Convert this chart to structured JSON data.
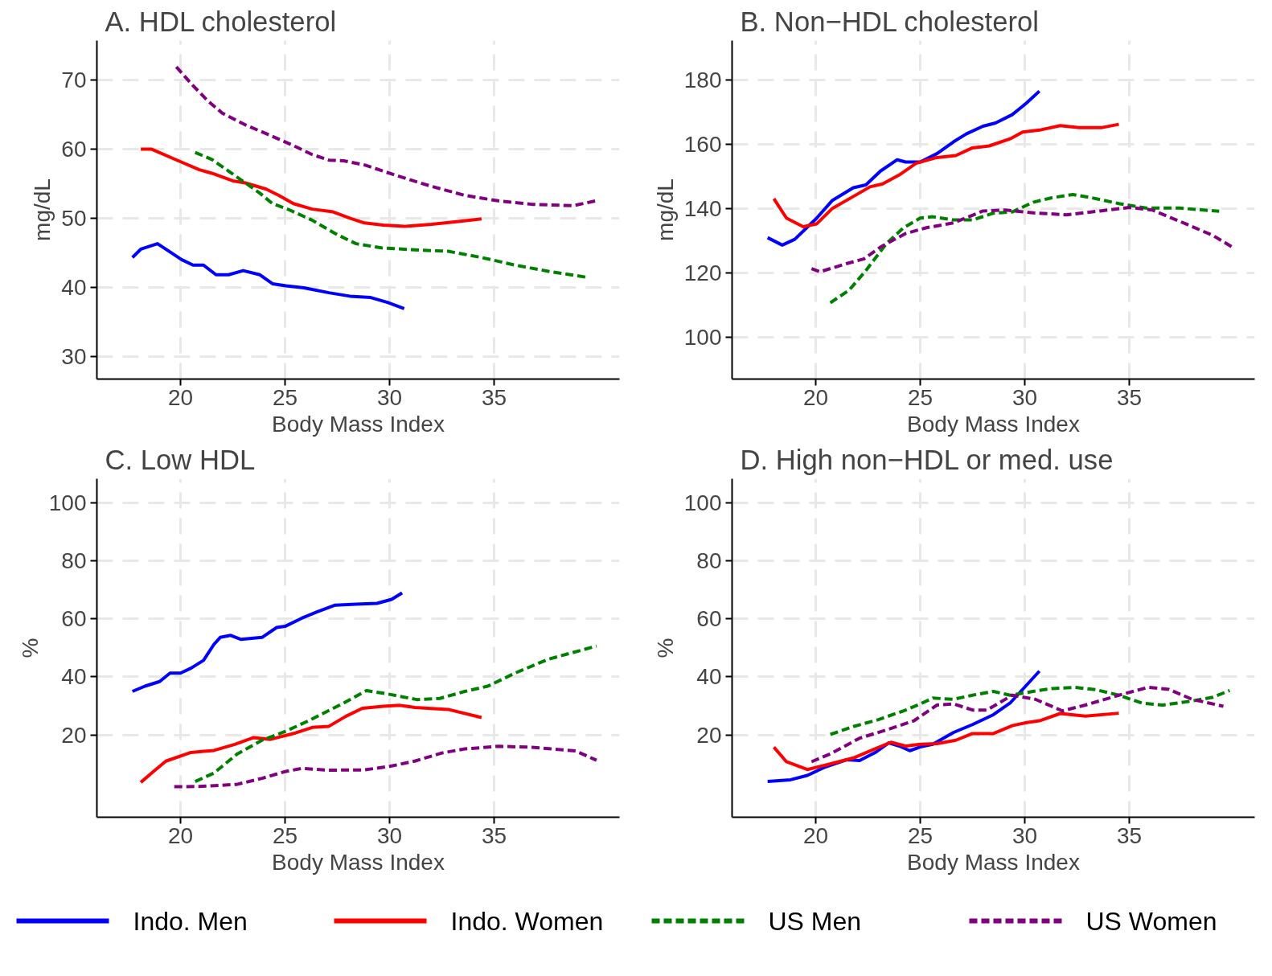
{
  "chart_data": [
    {
      "type": "line",
      "title": "A. HDL cholesterol",
      "xlabel": "Body Mass Index",
      "ylabel": "mg/dL",
      "xlim": [
        16,
        41
      ],
      "ylim": [
        26.7,
        75.7
      ],
      "xticks": [
        20,
        25,
        30,
        35
      ],
      "yticks": [
        30,
        40,
        50,
        60,
        70
      ],
      "grid": true,
      "legend": "bottom",
      "series": [
        {
          "name": "Indo. Men",
          "color": "#0000ff",
          "line_style": "solid",
          "x": [
            17.7,
            18.1,
            18.9,
            19.5,
            20.05,
            20.6,
            21.1,
            21.7,
            22.3,
            23.0,
            23.8,
            24.4,
            25.05,
            25.9,
            27.1,
            28.1,
            29.1,
            29.9,
            30.7
          ],
          "values": [
            44.3,
            45.5,
            46.3,
            45.1,
            44.0,
            43.2,
            43.2,
            41.8,
            41.8,
            42.4,
            41.8,
            40.5,
            40.2,
            39.9,
            39.2,
            38.7,
            38.5,
            37.8,
            36.9
          ]
        },
        {
          "name": "Indo. Women",
          "color": "#ff0000",
          "line_style": "solid",
          "x": [
            18.1,
            18.6,
            19.9,
            20.9,
            21.5,
            22.5,
            23.1,
            24.1,
            24.7,
            25.4,
            26.3,
            27.3,
            28.1,
            28.8,
            29.7,
            30.7,
            32.0,
            33.3,
            34.4
          ],
          "values": [
            60.0,
            60.0,
            58.3,
            57.0,
            56.5,
            55.4,
            55.1,
            54.2,
            53.3,
            52.1,
            51.3,
            50.9,
            50.0,
            49.3,
            49.0,
            48.8,
            49.1,
            49.5,
            49.9
          ]
        },
        {
          "name": "US Men",
          "color": "#008000",
          "line_style": "dashed",
          "x": [
            20.7,
            21.5,
            22.3,
            23.1,
            23.8,
            24.4,
            25.2,
            26.3,
            27.5,
            28.4,
            29.6,
            31.2,
            32.8,
            34.4,
            36.0,
            37.6,
            39.5
          ],
          "values": [
            59.5,
            58.5,
            56.8,
            55.1,
            53.6,
            52.1,
            51.2,
            49.7,
            47.6,
            46.3,
            45.7,
            45.4,
            45.2,
            44.3,
            43.2,
            42.3,
            41.4
          ]
        },
        {
          "name": "US Women",
          "color": "#800080",
          "line_style": "dashed",
          "x": [
            19.8,
            20.5,
            21.3,
            22.0,
            23.1,
            24.2,
            25.4,
            26.3,
            27.1,
            27.8,
            28.8,
            30.4,
            32.0,
            33.6,
            35.2,
            36.8,
            38.8,
            40.0
          ],
          "values": [
            71.9,
            69.5,
            67.0,
            65.2,
            63.5,
            62.1,
            60.5,
            59.2,
            58.4,
            58.3,
            57.7,
            56.1,
            54.6,
            53.3,
            52.5,
            52.0,
            51.8,
            52.6
          ]
        }
      ]
    },
    {
      "type": "line",
      "title": "B. Non−HDL cholesterol",
      "xlabel": "Body Mass Index",
      "ylabel": "mg/dL",
      "xlim": [
        16,
        41
      ],
      "ylim": [
        87.1,
        192.2
      ],
      "xticks": [
        20,
        25,
        30,
        35
      ],
      "yticks": [
        100,
        120,
        140,
        160,
        180
      ],
      "grid": true,
      "series": [
        {
          "color": "#0000ff",
          "line_style": "solid",
          "x": [
            17.7,
            18.4,
            19.0,
            20.05,
            20.8,
            21.8,
            22.4,
            23.1,
            23.9,
            24.3,
            25.0,
            25.8,
            26.6,
            27.2,
            28.0,
            28.6,
            29.4,
            30.1,
            30.7
          ],
          "values": [
            131.0,
            128.7,
            130.5,
            137.1,
            142.6,
            146.5,
            147.4,
            151.7,
            155.2,
            154.5,
            154.5,
            157.1,
            160.8,
            163.2,
            165.6,
            166.6,
            169.2,
            172.9,
            176.5
          ]
        },
        {
          "color": "#ff0000",
          "line_style": "solid",
          "x": [
            18.0,
            18.6,
            19.4,
            20.05,
            20.8,
            21.8,
            22.6,
            23.2,
            24.0,
            24.8,
            25.8,
            26.7,
            27.5,
            28.3,
            29.3,
            29.9,
            30.7,
            31.7,
            32.6,
            33.7,
            34.5
          ],
          "values": [
            143.1,
            137.1,
            134.4,
            135.3,
            140.1,
            143.8,
            146.8,
            147.7,
            150.5,
            154.1,
            155.9,
            156.5,
            158.9,
            159.5,
            161.7,
            163.8,
            164.4,
            165.8,
            165.2,
            165.2,
            166.2
          ]
        },
        {
          "color": "#008000",
          "line_style": "dashed",
          "x": [
            20.7,
            21.6,
            22.4,
            23.4,
            24.2,
            25.0,
            25.6,
            26.6,
            27.5,
            28.5,
            29.4,
            30.4,
            31.3,
            32.3,
            33.2,
            34.5,
            35.8,
            37.4,
            39.3
          ],
          "values": [
            110.8,
            114.7,
            120.8,
            129.3,
            134.1,
            137.1,
            137.5,
            136.5,
            136.5,
            138.6,
            139.0,
            142.0,
            143.4,
            144.4,
            143.4,
            141.6,
            140.2,
            140.2,
            139.2
          ]
        },
        {
          "color": "#800080",
          "line_style": "dashed",
          "x": [
            19.8,
            20.2,
            21.5,
            22.3,
            23.1,
            24.3,
            25.3,
            26.6,
            28.0,
            29.1,
            30.4,
            32.0,
            33.6,
            35.0,
            36.1,
            37.7,
            39.0,
            40.0
          ],
          "values": [
            121.4,
            120.4,
            123.0,
            124.4,
            128.1,
            132.3,
            134.1,
            135.6,
            139.3,
            139.6,
            138.7,
            138.1,
            139.3,
            140.4,
            139.6,
            135.3,
            131.7,
            127.8
          ]
        }
      ]
    },
    {
      "type": "line",
      "title": "C. Low HDL",
      "xlabel": "Body Mass Index",
      "ylabel": "%",
      "xlim": [
        16,
        41
      ],
      "ylim": [
        -8.3,
        108.2
      ],
      "xticks": [
        20,
        25,
        30,
        35
      ],
      "yticks": [
        20,
        40,
        60,
        80,
        100
      ],
      "grid": true,
      "series": [
        {
          "color": "#0000ff",
          "line_style": "solid",
          "x": [
            17.7,
            18.3,
            19.0,
            19.5,
            20.0,
            20.5,
            21.1,
            21.6,
            21.9,
            22.4,
            22.9,
            23.9,
            24.6,
            25.0,
            25.8,
            26.5,
            27.4,
            28.4,
            29.4,
            30.1,
            30.6
          ],
          "values": [
            35.0,
            36.8,
            38.4,
            41.3,
            41.3,
            43.0,
            45.7,
            51.2,
            53.6,
            54.3,
            52.9,
            53.6,
            57.0,
            57.4,
            60.2,
            62.3,
            64.7,
            65.0,
            65.3,
            66.7,
            68.9
          ]
        },
        {
          "color": "#ff0000",
          "line_style": "solid",
          "x": [
            18.1,
            18.7,
            19.3,
            20.5,
            21.6,
            22.6,
            23.5,
            24.3,
            25.5,
            26.3,
            27.1,
            27.9,
            28.7,
            29.7,
            30.5,
            31.2,
            32.8,
            34.4
          ],
          "values": [
            3.7,
            7.4,
            11.0,
            14.0,
            14.7,
            16.8,
            19.1,
            18.5,
            20.7,
            22.6,
            23.0,
            26.4,
            29.2,
            29.9,
            30.2,
            29.5,
            28.8,
            26.0
          ]
        },
        {
          "color": "#008000",
          "line_style": "dashed",
          "x": [
            20.7,
            21.6,
            22.7,
            23.9,
            25.0,
            26.1,
            27.7,
            28.9,
            30.0,
            31.3,
            32.4,
            33.6,
            34.7,
            36.0,
            37.6,
            39.9
          ],
          "values": [
            4.0,
            6.9,
            13.4,
            18.2,
            21.2,
            24.8,
            30.6,
            35.3,
            34.0,
            32.2,
            32.6,
            35.0,
            36.8,
            41.3,
            46.1,
            50.6
          ]
        },
        {
          "color": "#800080",
          "line_style": "dashed",
          "x": [
            19.7,
            20.9,
            22.7,
            23.9,
            25.0,
            25.8,
            27.1,
            28.8,
            30.0,
            31.2,
            32.5,
            33.6,
            35.2,
            36.8,
            38.9,
            39.9
          ],
          "values": [
            2.2,
            2.3,
            3.0,
            5.1,
            7.4,
            8.5,
            7.9,
            8.0,
            9.2,
            11.0,
            13.8,
            15.2,
            16.1,
            15.8,
            14.5,
            11.3
          ]
        }
      ]
    },
    {
      "type": "line",
      "title": "D. High non−HDL or med. use",
      "xlabel": "Body Mass Index",
      "ylabel": "%",
      "xlim": [
        16,
        41
      ],
      "ylim": [
        -8.3,
        108.2
      ],
      "xticks": [
        20,
        25,
        30,
        35
      ],
      "yticks": [
        20,
        40,
        60,
        80,
        100
      ],
      "grid": true,
      "series": [
        {
          "color": "#0000ff",
          "line_style": "solid",
          "x": [
            17.7,
            18.8,
            19.6,
            20.4,
            21.5,
            22.1,
            22.9,
            23.5,
            24.0,
            24.5,
            25.0,
            25.6,
            26.6,
            27.5,
            28.5,
            29.3,
            29.9,
            30.7
          ],
          "values": [
            4.0,
            4.6,
            6.1,
            8.8,
            11.5,
            11.2,
            14.2,
            17.3,
            16.2,
            14.6,
            15.9,
            16.8,
            20.9,
            23.6,
            27.0,
            31.0,
            35.7,
            42.0
          ]
        },
        {
          "color": "#ff0000",
          "line_style": "solid",
          "x": [
            18.0,
            18.6,
            19.6,
            20.5,
            21.8,
            22.8,
            23.6,
            24.3,
            25.0,
            25.8,
            26.7,
            27.5,
            28.5,
            29.4,
            30.1,
            30.7,
            31.7,
            32.9,
            34.5
          ],
          "values": [
            15.8,
            10.8,
            8.1,
            9.7,
            12.1,
            15.1,
            17.5,
            16.2,
            16.8,
            17.0,
            18.2,
            20.5,
            20.5,
            23.2,
            24.3,
            24.9,
            27.4,
            26.5,
            27.5
          ]
        },
        {
          "color": "#008000",
          "line_style": "dashed",
          "x": [
            20.7,
            21.8,
            23.0,
            24.2,
            25.0,
            25.6,
            26.6,
            27.5,
            28.5,
            29.3,
            30.4,
            31.3,
            32.4,
            33.4,
            34.5,
            35.6,
            36.6,
            38.0,
            39.0,
            39.8
          ],
          "values": [
            20.2,
            22.9,
            25.3,
            28.3,
            30.7,
            32.7,
            32.3,
            33.7,
            35.0,
            33.7,
            35.0,
            36.0,
            36.4,
            35.6,
            33.7,
            31.0,
            30.3,
            31.7,
            33.0,
            35.3
          ]
        },
        {
          "color": "#800080",
          "line_style": "dashed",
          "x": [
            19.8,
            20.7,
            22.1,
            23.4,
            24.7,
            25.8,
            26.6,
            27.5,
            28.2,
            29.4,
            30.5,
            31.8,
            32.9,
            34.5,
            35.9,
            36.9,
            38.0,
            39.5
          ],
          "values": [
            10.8,
            13.5,
            18.9,
            21.8,
            24.9,
            30.3,
            30.7,
            28.6,
            28.6,
            33.7,
            32.3,
            28.3,
            30.3,
            33.7,
            36.4,
            35.7,
            32.3,
            29.9
          ]
        }
      ]
    }
  ]
}
